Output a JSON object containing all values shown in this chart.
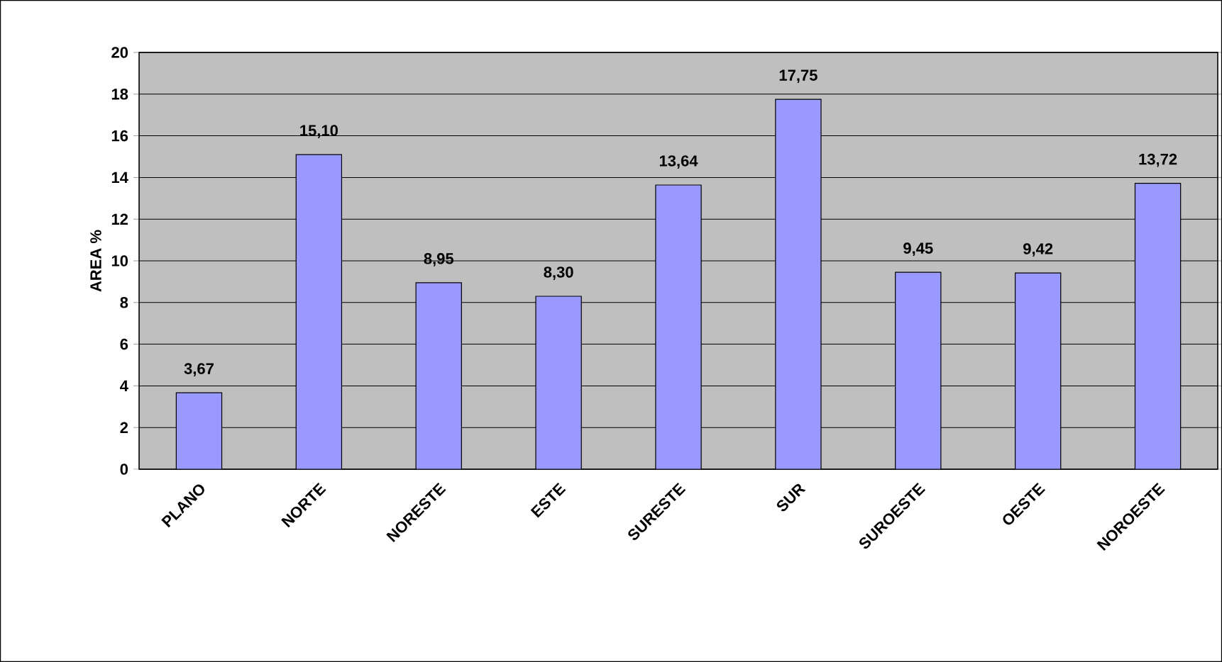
{
  "chart_data": {
    "type": "bar",
    "ylabel": "AREA %",
    "categories": [
      "PLANO",
      "NORTE",
      "NORESTE",
      "ESTE",
      "SURESTE",
      "SUR",
      "SUROESTE",
      "OESTE",
      "NOROESTE"
    ],
    "values": [
      3.67,
      15.1,
      8.95,
      8.3,
      13.64,
      17.75,
      9.45,
      9.42,
      13.72
    ],
    "value_labels": [
      "3,67",
      "15,10",
      "8,95",
      "8,30",
      "13,64",
      "17,75",
      "9,45",
      "9,42",
      "13,72"
    ],
    "color": "#9999ff",
    "ylim": [
      0,
      20
    ],
    "yticks": [
      0,
      2,
      4,
      6,
      8,
      10,
      12,
      14,
      16,
      18,
      20
    ],
    "grid": "y"
  }
}
